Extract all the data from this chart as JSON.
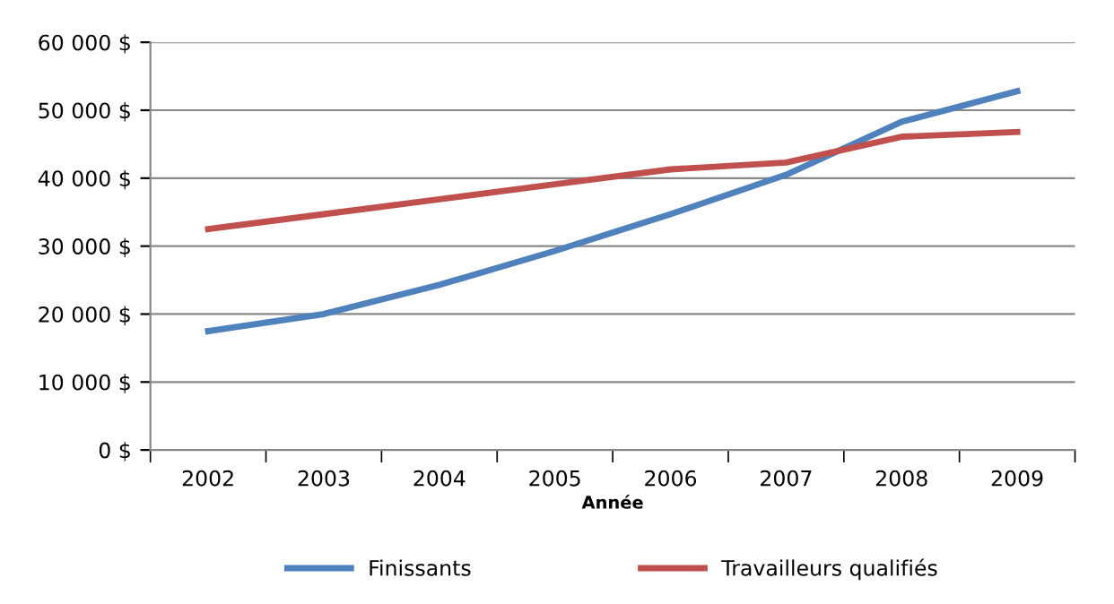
{
  "chart_data": {
    "type": "line",
    "xlabel": "Année",
    "categories": [
      "2002",
      "2003",
      "2004",
      "2005",
      "2006",
      "2007",
      "2008",
      "2009"
    ],
    "series": [
      {
        "name": "Finissants",
        "color": "#4f81bd",
        "values": [
          17500,
          20000,
          24300,
          29300,
          34700,
          40500,
          48300,
          52800
        ]
      },
      {
        "name": "Travailleurs qualifiés",
        "color": "#c0504d",
        "values": [
          32500,
          34700,
          36900,
          39100,
          41300,
          42300,
          46100,
          46800
        ]
      }
    ],
    "ylim": [
      0,
      60000
    ],
    "yticks": [
      {
        "value": 0,
        "label": "0 $"
      },
      {
        "value": 10000,
        "label": "10 000 $"
      },
      {
        "value": 20000,
        "label": "20 000 $"
      },
      {
        "value": 30000,
        "label": "30 000 $"
      },
      {
        "value": 40000,
        "label": "40 000 $"
      },
      {
        "value": 50000,
        "label": "50 000 $"
      },
      {
        "value": 60000,
        "label": "60 000 $"
      }
    ],
    "grid": "y",
    "legend": "bottom",
    "marker": "none",
    "line_style": "solid"
  }
}
